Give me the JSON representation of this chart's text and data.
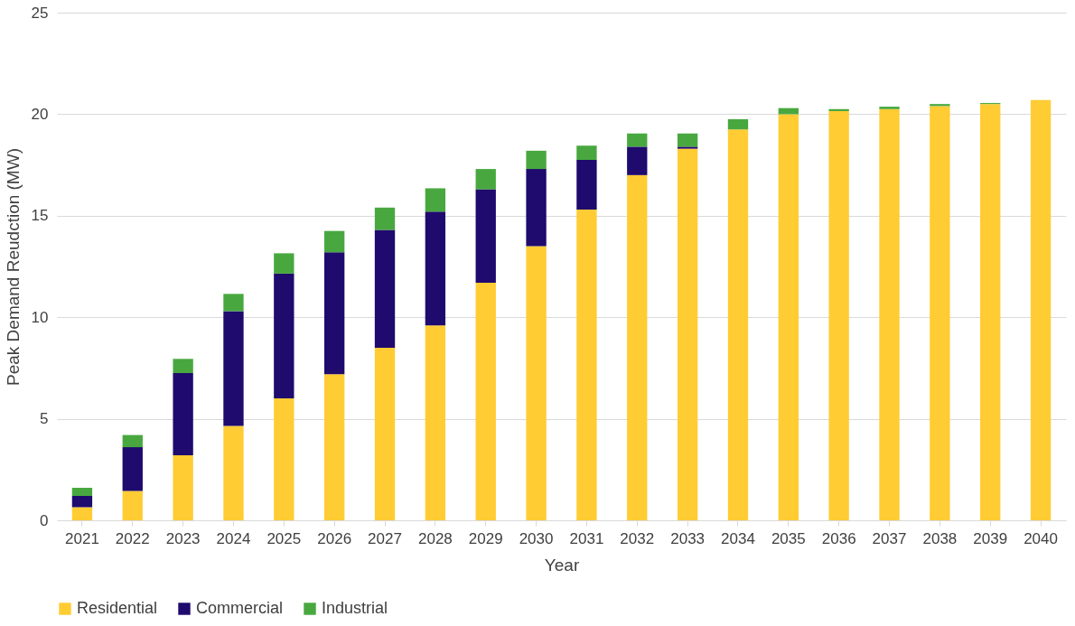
{
  "chart_data": {
    "type": "bar",
    "stacked": true,
    "xlabel": "Year",
    "ylabel": "Peak Demand Reudction (MW)",
    "categories": [
      "2021",
      "2022",
      "2023",
      "2024",
      "2025",
      "2026",
      "2027",
      "2028",
      "2029",
      "2030",
      "2031",
      "2032",
      "2033",
      "2034",
      "2035",
      "2036",
      "2037",
      "2038",
      "2039",
      "2040"
    ],
    "series": [
      {
        "name": "Residential",
        "color": "#ffcc33",
        "values": [
          0.65,
          1.45,
          3.2,
          4.65,
          6.0,
          7.2,
          8.5,
          9.6,
          11.7,
          13.5,
          15.3,
          17.0,
          18.3,
          19.25,
          20.0,
          20.15,
          20.25,
          20.4,
          20.5,
          20.7
        ]
      },
      {
        "name": "Commercial",
        "color": "#1f0a6e",
        "values": [
          0.55,
          2.15,
          4.05,
          5.65,
          6.15,
          6.0,
          5.8,
          5.6,
          4.6,
          3.8,
          2.45,
          1.4,
          0.1,
          0,
          0,
          0,
          0,
          0,
          0,
          0
        ]
      },
      {
        "name": "Industrial",
        "color": "#48a83f",
        "values": [
          0.4,
          0.6,
          0.7,
          0.85,
          1.0,
          1.05,
          1.1,
          1.15,
          1.0,
          0.9,
          0.7,
          0.65,
          0.65,
          0.5,
          0.3,
          0.1,
          0.12,
          0.1,
          0.05,
          0
        ]
      }
    ],
    "ylim": [
      0,
      25
    ],
    "yticks": [
      0,
      5,
      10,
      15,
      20,
      25
    ],
    "grid": "y",
    "legend": "bottom"
  }
}
